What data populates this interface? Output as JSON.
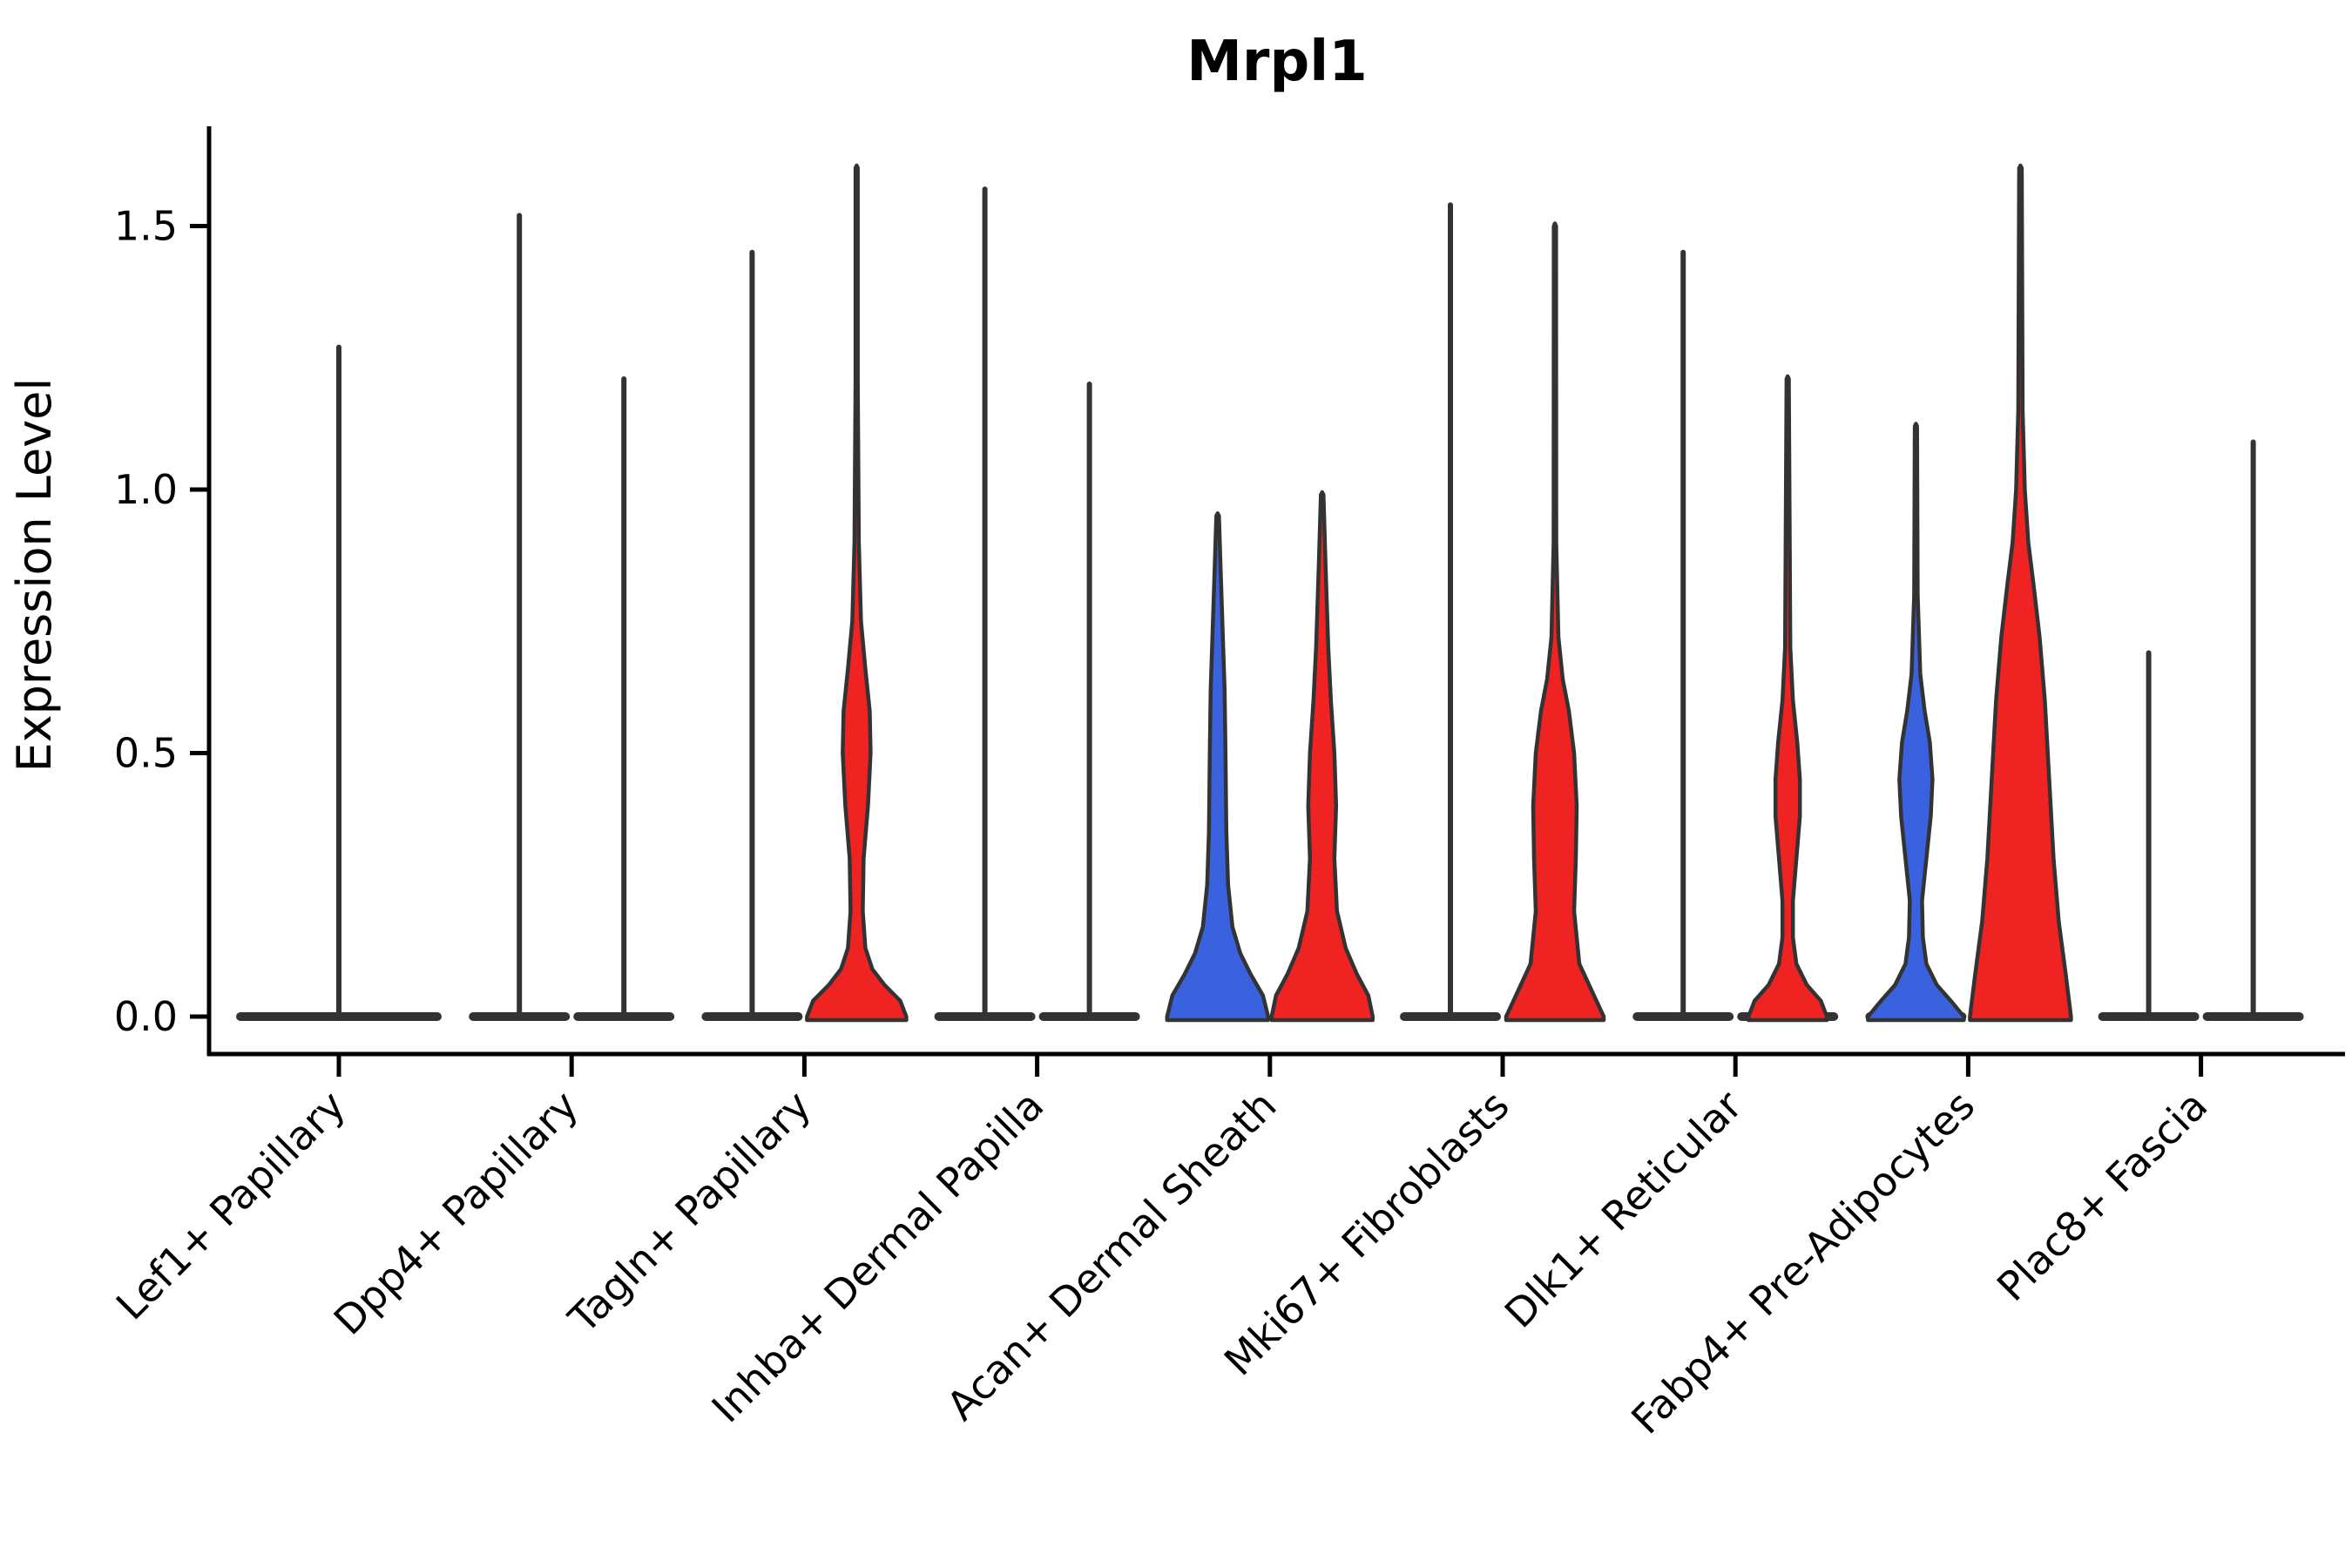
{
  "chart_data": {
    "type": "violin",
    "title": "Mrpl1",
    "ylabel": "Expression Level",
    "yticks": [
      0.0,
      0.5,
      1.0,
      1.5
    ],
    "ylim": [
      0,
      1.69
    ],
    "grid": false,
    "legend": "none",
    "colors": {
      "split_left_fill": "#3B62DE",
      "split_right_fill": "#F02323",
      "outline": "#333333",
      "background": "#ffffff"
    },
    "categories": [
      "Lef1+ Papillary",
      "Dpp4+ Papillary",
      "Tagln+ Papillary",
      "Inhba+ Dermal Papilla",
      "Acan+ Dermal Sheath",
      "Mki67+ Fibroblasts",
      "Dlk1+ Reticular",
      "Fabp4+ Pre-Adipocytes",
      "Plac8+ Fascia"
    ],
    "violins": [
      {
        "category": "Lef1+ Papillary",
        "side": "single",
        "fill": "none",
        "max": 1.27,
        "profile": "flat"
      },
      {
        "category": "Dpp4+ Papillary",
        "side": "left",
        "fill": "none",
        "max": 1.52,
        "profile": "flat"
      },
      {
        "category": "Dpp4+ Papillary",
        "side": "right",
        "fill": "none",
        "max": 1.21,
        "profile": "flat"
      },
      {
        "category": "Tagln+ Papillary",
        "side": "left",
        "fill": "none",
        "max": 1.45,
        "profile": "flat"
      },
      {
        "category": "Tagln+ Papillary",
        "side": "right",
        "fill": "red",
        "max": 1.61,
        "profile": [
          [
            0,
            57
          ],
          [
            0.03,
            50
          ],
          [
            0.06,
            32
          ],
          [
            0.09,
            18
          ],
          [
            0.13,
            10
          ],
          [
            0.2,
            7
          ],
          [
            0.3,
            8
          ],
          [
            0.4,
            13
          ],
          [
            0.5,
            16
          ],
          [
            0.58,
            15
          ],
          [
            0.66,
            10
          ],
          [
            0.75,
            5
          ],
          [
            0.9,
            2.5
          ],
          [
            1.2,
            1.3
          ],
          [
            1.61,
            1.3
          ]
        ]
      },
      {
        "category": "Inhba+ Dermal Papilla",
        "side": "left",
        "fill": "none",
        "max": 1.57,
        "profile": "flat"
      },
      {
        "category": "Inhba+ Dermal Papilla",
        "side": "right",
        "fill": "none",
        "max": 1.2,
        "profile": "flat"
      },
      {
        "category": "Acan+ Dermal Sheath",
        "side": "left",
        "fill": "blue",
        "max": 0.95,
        "profile": [
          [
            0,
            58
          ],
          [
            0.04,
            52
          ],
          [
            0.08,
            38
          ],
          [
            0.12,
            26
          ],
          [
            0.17,
            17
          ],
          [
            0.25,
            12
          ],
          [
            0.35,
            10
          ],
          [
            0.5,
            9
          ],
          [
            0.62,
            8
          ],
          [
            0.72,
            6
          ],
          [
            0.82,
            4
          ],
          [
            0.95,
            1.5
          ]
        ]
      },
      {
        "category": "Acan+ Dermal Sheath",
        "side": "right",
        "fill": "red",
        "max": 0.99,
        "profile": [
          [
            0,
            58
          ],
          [
            0.04,
            53
          ],
          [
            0.08,
            40
          ],
          [
            0.13,
            27
          ],
          [
            0.2,
            17
          ],
          [
            0.3,
            14
          ],
          [
            0.4,
            16
          ],
          [
            0.5,
            14
          ],
          [
            0.6,
            10
          ],
          [
            0.7,
            7
          ],
          [
            0.85,
            4
          ],
          [
            0.99,
            1.5
          ]
        ]
      },
      {
        "category": "Mki67+ Fibroblasts",
        "side": "left",
        "fill": "none",
        "max": 1.54,
        "profile": "flat"
      },
      {
        "category": "Mki67+ Fibroblasts",
        "side": "right",
        "fill": "red",
        "max": 1.5,
        "profile": [
          [
            0,
            56
          ],
          [
            0.05,
            42
          ],
          [
            0.1,
            28
          ],
          [
            0.2,
            22
          ],
          [
            0.3,
            24
          ],
          [
            0.4,
            25
          ],
          [
            0.5,
            22
          ],
          [
            0.58,
            16
          ],
          [
            0.64,
            9
          ],
          [
            0.72,
            4
          ],
          [
            0.9,
            1.5
          ],
          [
            1.5,
            1.3
          ]
        ]
      },
      {
        "category": "Dlk1+ Reticular",
        "side": "left",
        "fill": "none",
        "max": 1.45,
        "profile": "flat"
      },
      {
        "category": "Dlk1+ Reticular",
        "side": "right",
        "fill": "red",
        "max": 1.21,
        "profile": [
          [
            0,
            45
          ],
          [
            0.03,
            38
          ],
          [
            0.06,
            22
          ],
          [
            0.1,
            10
          ],
          [
            0.15,
            6
          ],
          [
            0.22,
            6
          ],
          [
            0.3,
            10
          ],
          [
            0.38,
            14
          ],
          [
            0.45,
            14
          ],
          [
            0.52,
            11
          ],
          [
            0.6,
            6
          ],
          [
            0.7,
            3
          ],
          [
            1.21,
            1.3
          ]
        ]
      },
      {
        "category": "Fabp4+ Pre-Adipocytes",
        "side": "left",
        "fill": "blue",
        "max": 1.12,
        "profile": [
          [
            0,
            55
          ],
          [
            0.03,
            40
          ],
          [
            0.06,
            24
          ],
          [
            0.1,
            12
          ],
          [
            0.15,
            8
          ],
          [
            0.22,
            7
          ],
          [
            0.3,
            12
          ],
          [
            0.38,
            17
          ],
          [
            0.45,
            19
          ],
          [
            0.52,
            16
          ],
          [
            0.58,
            10
          ],
          [
            0.65,
            5
          ],
          [
            0.8,
            2
          ],
          [
            1.12,
            1.3
          ]
        ]
      },
      {
        "category": "Fabp4+ Pre-Adipocytes",
        "side": "right",
        "fill": "red",
        "max": 1.61,
        "profile": [
          [
            0,
            58
          ],
          [
            0.08,
            52
          ],
          [
            0.18,
            44
          ],
          [
            0.3,
            38
          ],
          [
            0.45,
            33
          ],
          [
            0.6,
            28
          ],
          [
            0.72,
            22
          ],
          [
            0.82,
            15
          ],
          [
            0.9,
            9
          ],
          [
            1.0,
            5
          ],
          [
            1.15,
            2.5
          ],
          [
            1.61,
            1.5
          ]
        ]
      },
      {
        "category": "Plac8+ Fascia",
        "side": "left",
        "fill": "none",
        "max": 0.69,
        "profile": "flat"
      },
      {
        "category": "Plac8+ Fascia",
        "side": "right",
        "fill": "none",
        "max": 1.09,
        "profile": "flat"
      }
    ]
  }
}
